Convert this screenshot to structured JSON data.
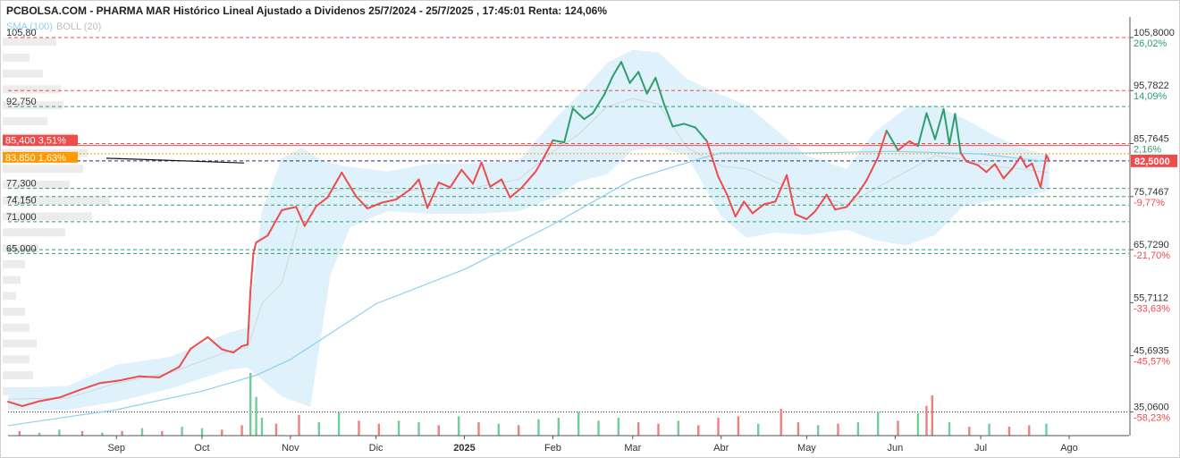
{
  "title": "PCBOLSA.COM - PHARMA MAR Histórico Lineal Ajustado a Dividenos 25/7/2024 - 25/7/2025 , 17:45:01 Renta: 124,06%",
  "indicators": [
    {
      "label": "SMA (100)",
      "color": "#8fd0ef"
    },
    {
      "label": "BOLL (20)",
      "color": "#bdbdbd"
    }
  ],
  "colors": {
    "up": "#2e9e6e",
    "down": "#ef4b4b",
    "sma": "#8fd0ef",
    "band_fill": "#dff1fb",
    "band_mid": "#cfd8dc",
    "last_price": "#2222aa"
  },
  "chart_data": {
    "type": "line",
    "x_range": [
      "2024-07-25",
      "2025-07-25"
    ],
    "ylim": [
      30.6,
      109.0
    ],
    "y_ticks": [
      {
        "value": 105.8,
        "label": "105,8000",
        "pct": "26,02%",
        "pct_color": "#2e9e6e",
        "line_color": "#ef4b4b"
      },
      {
        "value": 95.7822,
        "label": "95,7822",
        "pct": "14,09%",
        "pct_color": "#2e9e6e",
        "line_color": "#ef4b4b"
      },
      {
        "value": 85.7645,
        "label": "85,7645",
        "pct": "2,16%",
        "pct_color": "#2e9e6e",
        "line_color": "#ef4b4b"
      },
      {
        "value": 75.7467,
        "label": "75,7467",
        "pct": "-9,77%",
        "pct_color": "#ef4b4b",
        "line_color": "#2e9e6e"
      },
      {
        "value": 65.729,
        "label": "65,7290",
        "pct": "-21,70%",
        "pct_color": "#ef4b4b",
        "line_color": "#2e9e6e"
      },
      {
        "value": 55.7112,
        "label": "55,7112",
        "pct": "-33,63%",
        "pct_color": "#ef4b4b",
        "line_color": null
      },
      {
        "value": 45.6935,
        "label": "45,6935",
        "pct": "-45,57%",
        "pct_color": "#ef4b4b",
        "line_color": null
      },
      {
        "value": 35.06,
        "label": "35,0600",
        "pct": "-58,23%",
        "pct_color": "#ef4b4b",
        "line_color": "#222222"
      }
    ],
    "left_levels": [
      {
        "value": 105.8,
        "label": "105,80"
      },
      {
        "value": 92.75,
        "label": "92,750"
      },
      {
        "value": 77.3,
        "label": "77,300"
      },
      {
        "value": 74.15,
        "label": "74,150"
      },
      {
        "value": 71.0,
        "label": "71,000"
      },
      {
        "value": 65.0,
        "label": "65,000"
      }
    ],
    "price_tags": [
      {
        "value": 85.4,
        "label": "85,400 3,51%",
        "color": "#ef4b4b"
      },
      {
        "value": 83.85,
        "label": "83,850 1,63%",
        "color": "#ff9900"
      }
    ],
    "last_price": {
      "value": 82.5,
      "label": "82,5000"
    },
    "x_ticks": [
      {
        "date": "2024-09-01",
        "label": "Sep",
        "bold": false
      },
      {
        "date": "2024-10-01",
        "label": "Oct",
        "bold": false
      },
      {
        "date": "2024-11-01",
        "label": "Nov",
        "bold": false
      },
      {
        "date": "2024-12-01",
        "label": "Dic",
        "bold": false
      },
      {
        "date": "2025-01-01",
        "label": "2025",
        "bold": true
      },
      {
        "date": "2025-02-01",
        "label": "Feb",
        "bold": false
      },
      {
        "date": "2025-03-01",
        "label": "Mar",
        "bold": false
      },
      {
        "date": "2025-04-01",
        "label": "Abr",
        "bold": false
      },
      {
        "date": "2025-05-01",
        "label": "May",
        "bold": false
      },
      {
        "date": "2025-06-01",
        "label": "Jun",
        "bold": false
      },
      {
        "date": "2025-07-01",
        "label": "Jul",
        "bold": false
      },
      {
        "date": "2025-08-01",
        "label": "Ago",
        "bold": false
      }
    ],
    "price": [
      [
        "2024-07-25",
        37.0
      ],
      [
        "2024-07-30",
        36.2
      ],
      [
        "2024-08-05",
        37.1
      ],
      [
        "2024-08-12",
        37.8
      ],
      [
        "2024-08-19",
        39.2
      ],
      [
        "2024-08-26",
        40.5
      ],
      [
        "2024-09-02",
        41.0
      ],
      [
        "2024-09-09",
        41.8
      ],
      [
        "2024-09-16",
        41.6
      ],
      [
        "2024-09-23",
        43.6
      ],
      [
        "2024-09-27",
        47.0
      ],
      [
        "2024-10-03",
        49.2
      ],
      [
        "2024-10-08",
        46.9
      ],
      [
        "2024-10-12",
        46.3
      ],
      [
        "2024-10-15",
        47.5
      ],
      [
        "2024-10-17",
        47.8
      ],
      [
        "2024-10-18",
        58.0
      ],
      [
        "2024-10-19",
        65.0
      ],
      [
        "2024-10-20",
        67.1
      ],
      [
        "2024-10-24",
        68.4
      ],
      [
        "2024-10-29",
        73.2
      ],
      [
        "2024-11-03",
        73.8
      ],
      [
        "2024-11-06",
        70.2
      ],
      [
        "2024-11-10",
        73.9
      ],
      [
        "2024-11-14",
        75.6
      ],
      [
        "2024-11-19",
        80.3
      ],
      [
        "2024-11-24",
        75.8
      ],
      [
        "2024-11-28",
        73.5
      ],
      [
        "2024-12-03",
        74.6
      ],
      [
        "2024-12-08",
        75.2
      ],
      [
        "2024-12-13",
        77.1
      ],
      [
        "2024-12-16",
        79.0
      ],
      [
        "2024-12-19",
        73.6
      ],
      [
        "2024-12-23",
        78.4
      ],
      [
        "2024-12-27",
        77.5
      ],
      [
        "2024-12-31",
        80.8
      ],
      [
        "2025-01-04",
        78.2
      ],
      [
        "2025-01-07",
        82.2
      ],
      [
        "2025-01-10",
        77.6
      ],
      [
        "2025-01-14",
        79.0
      ],
      [
        "2025-01-17",
        75.6
      ],
      [
        "2025-01-21",
        77.4
      ],
      [
        "2025-01-26",
        80.5
      ],
      [
        "2025-01-29",
        83.3
      ],
      [
        "2025-02-01",
        86.4
      ],
      [
        "2025-02-05",
        86.0
      ],
      [
        "2025-02-08",
        92.4
      ],
      [
        "2025-02-12",
        90.4
      ],
      [
        "2025-02-15",
        91.5
      ],
      [
        "2025-02-19",
        95.0
      ],
      [
        "2025-02-22",
        98.5
      ],
      [
        "2025-02-25",
        101.2
      ],
      [
        "2025-02-28",
        97.2
      ],
      [
        "2025-03-03",
        99.3
      ],
      [
        "2025-03-06",
        95.2
      ],
      [
        "2025-03-09",
        98.2
      ],
      [
        "2025-03-12",
        93.2
      ],
      [
        "2025-03-15",
        89.0
      ],
      [
        "2025-03-19",
        89.5
      ],
      [
        "2025-03-23",
        88.8
      ],
      [
        "2025-03-27",
        86.2
      ],
      [
        "2025-03-31",
        79.5
      ],
      [
        "2025-04-03",
        76.2
      ],
      [
        "2025-04-06",
        72.0
      ],
      [
        "2025-04-09",
        74.8
      ],
      [
        "2025-04-12",
        72.6
      ],
      [
        "2025-04-16",
        74.3
      ],
      [
        "2025-04-20",
        74.8
      ],
      [
        "2025-04-24",
        79.8
      ],
      [
        "2025-04-27",
        72.4
      ],
      [
        "2025-05-01",
        71.5
      ],
      [
        "2025-05-04",
        73.0
      ],
      [
        "2025-05-08",
        76.1
      ],
      [
        "2025-05-11",
        73.3
      ],
      [
        "2025-05-15",
        73.8
      ],
      [
        "2025-05-19",
        76.4
      ],
      [
        "2025-05-22",
        78.8
      ],
      [
        "2025-05-26",
        83.2
      ],
      [
        "2025-05-29",
        88.2
      ],
      [
        "2025-06-02",
        84.5
      ],
      [
        "2025-06-06",
        86.2
      ],
      [
        "2025-06-09",
        85.3
      ],
      [
        "2025-06-12",
        91.5
      ],
      [
        "2025-06-15",
        86.6
      ],
      [
        "2025-06-18",
        92.3
      ],
      [
        "2025-06-20",
        85.6
      ],
      [
        "2025-06-22",
        91.4
      ],
      [
        "2025-06-24",
        84.0
      ],
      [
        "2025-06-26",
        82.4
      ],
      [
        "2025-06-30",
        81.7
      ],
      [
        "2025-07-03",
        80.4
      ],
      [
        "2025-07-06",
        81.9
      ],
      [
        "2025-07-09",
        79.2
      ],
      [
        "2025-07-12",
        81.0
      ],
      [
        "2025-07-15",
        83.3
      ],
      [
        "2025-07-17",
        81.3
      ],
      [
        "2025-07-19",
        82.0
      ],
      [
        "2025-07-22",
        77.5
      ],
      [
        "2025-07-24",
        83.6
      ],
      [
        "2025-07-25",
        82.5
      ]
    ],
    "sma_100": [
      [
        "2024-07-25",
        32.5
      ],
      [
        "2024-09-01",
        35.5
      ],
      [
        "2024-10-01",
        39.0
      ],
      [
        "2024-10-20",
        42.0
      ],
      [
        "2024-11-01",
        45.0
      ],
      [
        "2024-12-01",
        55.5
      ],
      [
        "2025-01-01",
        62.0
      ],
      [
        "2025-02-01",
        70.5
      ],
      [
        "2025-03-01",
        79.0
      ],
      [
        "2025-03-25",
        83.0
      ],
      [
        "2025-04-01",
        84.0
      ],
      [
        "2025-05-01",
        84.0
      ],
      [
        "2025-06-01",
        84.3
      ],
      [
        "2025-07-01",
        83.8
      ],
      [
        "2025-07-25",
        82.3
      ]
    ],
    "boll_20_upper": [
      [
        "2024-07-25",
        39.5
      ],
      [
        "2024-08-15",
        40.0
      ],
      [
        "2024-09-01",
        44.0
      ],
      [
        "2024-09-20",
        45.5
      ],
      [
        "2024-10-10",
        50.0
      ],
      [
        "2024-10-17",
        51.0
      ],
      [
        "2024-10-22",
        73.0
      ],
      [
        "2024-10-29",
        83.0
      ],
      [
        "2024-11-05",
        85.0
      ],
      [
        "2024-11-12",
        82.5
      ],
      [
        "2024-11-20",
        81.5
      ],
      [
        "2024-12-05",
        80.5
      ],
      [
        "2024-12-20",
        82.0
      ],
      [
        "2025-01-05",
        82.0
      ],
      [
        "2025-01-20",
        82.5
      ],
      [
        "2025-02-01",
        90.0
      ],
      [
        "2025-02-10",
        95.0
      ],
      [
        "2025-02-20",
        101.0
      ],
      [
        "2025-03-01",
        103.5
      ],
      [
        "2025-03-10",
        103.0
      ],
      [
        "2025-03-20",
        98.0
      ],
      [
        "2025-04-01",
        95.0
      ],
      [
        "2025-04-10",
        93.0
      ],
      [
        "2025-04-20",
        88.5
      ],
      [
        "2025-05-01",
        83.5
      ],
      [
        "2025-05-15",
        81.0
      ],
      [
        "2025-05-25",
        88.0
      ],
      [
        "2025-06-05",
        92.5
      ],
      [
        "2025-06-15",
        93.0
      ],
      [
        "2025-06-25",
        90.5
      ],
      [
        "2025-07-05",
        87.5
      ],
      [
        "2025-07-15",
        85.0
      ],
      [
        "2025-07-25",
        83.5
      ]
    ],
    "boll_20_lower": [
      [
        "2024-07-25",
        35.5
      ],
      [
        "2024-08-15",
        35.5
      ],
      [
        "2024-09-01",
        37.0
      ],
      [
        "2024-09-20",
        39.5
      ],
      [
        "2024-10-10",
        43.0
      ],
      [
        "2024-10-17",
        43.5
      ],
      [
        "2024-10-29",
        38.0
      ],
      [
        "2024-11-08",
        36.0
      ],
      [
        "2024-11-15",
        61.0
      ],
      [
        "2024-11-22",
        70.0
      ],
      [
        "2024-12-05",
        73.0
      ],
      [
        "2024-12-20",
        72.5
      ],
      [
        "2025-01-05",
        72.5
      ],
      [
        "2025-01-20",
        73.0
      ],
      [
        "2025-02-01",
        75.5
      ],
      [
        "2025-02-10",
        78.5
      ],
      [
        "2025-02-20",
        80.0
      ],
      [
        "2025-03-01",
        84.5
      ],
      [
        "2025-03-10",
        85.0
      ],
      [
        "2025-03-20",
        83.5
      ],
      [
        "2025-04-01",
        72.0
      ],
      [
        "2025-04-10",
        68.0
      ],
      [
        "2025-04-20",
        69.0
      ],
      [
        "2025-05-01",
        68.5
      ],
      [
        "2025-05-15",
        69.5
      ],
      [
        "2025-05-25",
        67.5
      ],
      [
        "2025-06-05",
        66.5
      ],
      [
        "2025-06-15",
        68.5
      ],
      [
        "2025-06-25",
        74.0
      ],
      [
        "2025-07-05",
        75.0
      ],
      [
        "2025-07-15",
        75.5
      ],
      [
        "2025-07-25",
        77.0
      ]
    ],
    "volume": [
      [
        "2024-07-29",
        3,
        "down"
      ],
      [
        "2024-08-05",
        2,
        "up"
      ],
      [
        "2024-08-12",
        4,
        "up"
      ],
      [
        "2024-08-20",
        3,
        "down"
      ],
      [
        "2024-08-27",
        2,
        "up"
      ],
      [
        "2024-09-03",
        3,
        "down"
      ],
      [
        "2024-09-10",
        5,
        "up"
      ],
      [
        "2024-09-17",
        3,
        "down"
      ],
      [
        "2024-09-24",
        6,
        "up"
      ],
      [
        "2024-10-01",
        5,
        "up"
      ],
      [
        "2024-10-08",
        4,
        "down"
      ],
      [
        "2024-10-15",
        7,
        "down"
      ],
      [
        "2024-10-18",
        42,
        "up"
      ],
      [
        "2024-10-20",
        26,
        "up"
      ],
      [
        "2024-10-22",
        12,
        "up"
      ],
      [
        "2024-10-27",
        8,
        "down"
      ],
      [
        "2024-11-04",
        14,
        "down"
      ],
      [
        "2024-11-11",
        9,
        "up"
      ],
      [
        "2024-11-18",
        16,
        "up"
      ],
      [
        "2024-11-25",
        10,
        "down"
      ],
      [
        "2024-12-02",
        8,
        "down"
      ],
      [
        "2024-12-09",
        10,
        "up"
      ],
      [
        "2024-12-16",
        9,
        "up"
      ],
      [
        "2024-12-23",
        7,
        "down"
      ],
      [
        "2024-12-30",
        13,
        "up"
      ],
      [
        "2025-01-06",
        9,
        "down"
      ],
      [
        "2025-01-13",
        8,
        "up"
      ],
      [
        "2025-01-20",
        7,
        "down"
      ],
      [
        "2025-01-27",
        11,
        "up"
      ],
      [
        "2025-02-03",
        12,
        "up"
      ],
      [
        "2025-02-10",
        16,
        "up"
      ],
      [
        "2025-02-17",
        10,
        "up"
      ],
      [
        "2025-02-24",
        12,
        "up"
      ],
      [
        "2025-03-03",
        9,
        "down"
      ],
      [
        "2025-03-10",
        8,
        "down"
      ],
      [
        "2025-03-17",
        10,
        "up"
      ],
      [
        "2025-03-24",
        7,
        "down"
      ],
      [
        "2025-03-31",
        12,
        "down"
      ],
      [
        "2025-04-07",
        13,
        "down"
      ],
      [
        "2025-04-14",
        8,
        "up"
      ],
      [
        "2025-04-22",
        18,
        "down"
      ],
      [
        "2025-04-28",
        9,
        "down"
      ],
      [
        "2025-05-05",
        7,
        "up"
      ],
      [
        "2025-05-12",
        8,
        "down"
      ],
      [
        "2025-05-19",
        9,
        "up"
      ],
      [
        "2025-05-26",
        16,
        "up"
      ],
      [
        "2025-06-02",
        10,
        "down"
      ],
      [
        "2025-06-09",
        15,
        "up"
      ],
      [
        "2025-06-12",
        20,
        "down"
      ],
      [
        "2025-06-14",
        27,
        "down"
      ],
      [
        "2025-06-20",
        9,
        "up"
      ],
      [
        "2025-06-27",
        6,
        "down"
      ],
      [
        "2025-07-04",
        8,
        "up"
      ],
      [
        "2025-07-11",
        6,
        "down"
      ],
      [
        "2025-07-18",
        7,
        "down"
      ],
      [
        "2025-07-24",
        8,
        "up"
      ]
    ],
    "volume_max": 42
  }
}
